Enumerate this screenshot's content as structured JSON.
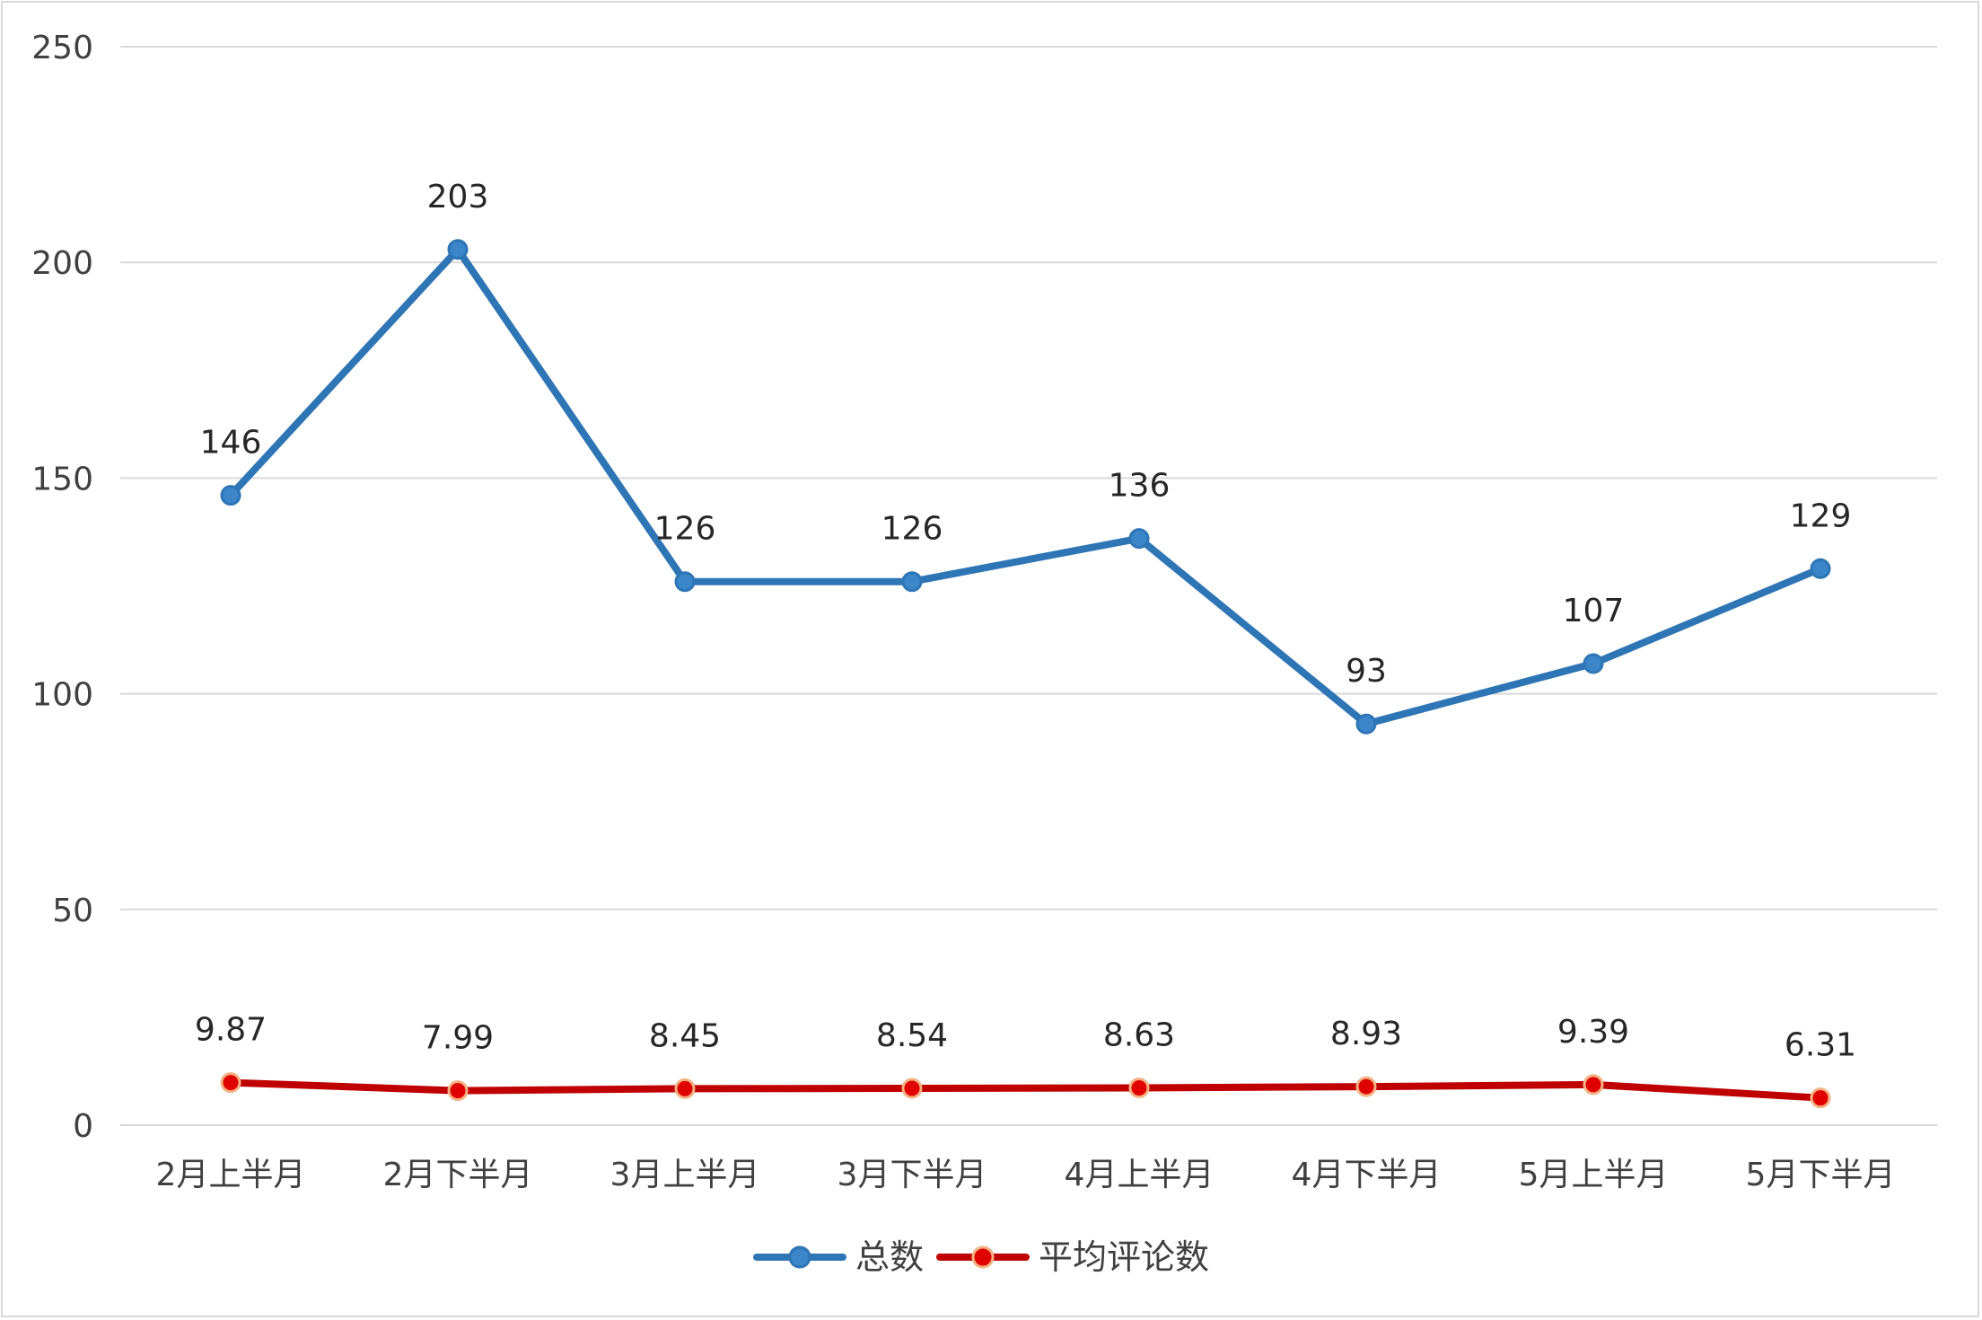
{
  "chart_data": {
    "type": "line",
    "title": "",
    "xlabel": "",
    "ylabel": "",
    "ylim": [
      0,
      250
    ],
    "yticks": [
      0,
      50,
      100,
      150,
      200,
      250
    ],
    "grid": true,
    "legend_position": "bottom",
    "categories": [
      "2月上半月",
      "2月下半月",
      "3月上半月",
      "3月下半月",
      "4月上半月",
      "4月下半月",
      "5月上半月",
      "5月下半月"
    ],
    "series": [
      {
        "name": "总数",
        "color": "#2e75b6",
        "marker_fill": "#3a86c8",
        "values": [
          146,
          203,
          126,
          126,
          136,
          93,
          107,
          129
        ],
        "labels": [
          "146",
          "203",
          "126",
          "126",
          "136",
          "93",
          "107",
          "129"
        ]
      },
      {
        "name": "平均评论数",
        "color": "#c00000",
        "marker_fill": "#e00000",
        "marker_stroke": "#f4b183",
        "values": [
          9.87,
          7.99,
          8.45,
          8.54,
          8.63,
          8.93,
          9.39,
          6.31
        ],
        "labels": [
          "9.87",
          "7.99",
          "8.45",
          "8.54",
          "8.63",
          "8.93",
          "9.39",
          "6.31"
        ]
      }
    ]
  }
}
